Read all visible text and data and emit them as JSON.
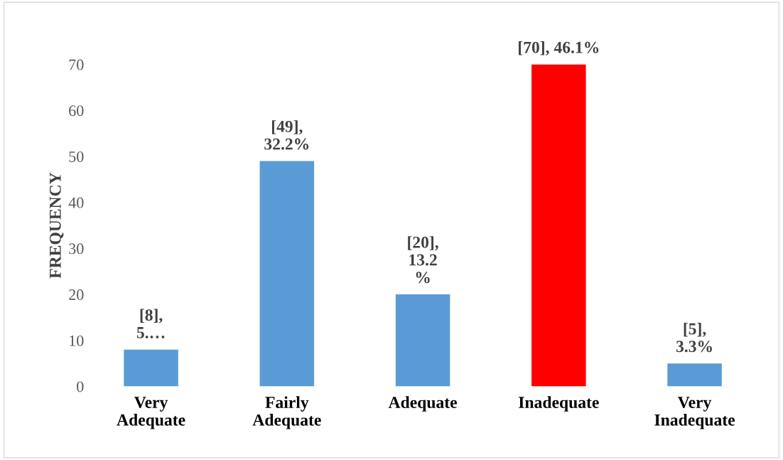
{
  "chart_data": {
    "type": "bar",
    "ylabel": "FREQUENCY",
    "categories": [
      "Very\nAdequate",
      "Fairly\nAdequate",
      "Adequate",
      "Inadequate",
      "Very\nInadequate"
    ],
    "values": [
      8,
      49,
      20,
      70,
      5
    ],
    "colors": [
      "#5b9bd5",
      "#5b9bd5",
      "#5b9bd5",
      "#ff0000",
      "#5b9bd5"
    ],
    "value_labels": [
      "[8],\n5.…",
      "[49],\n32.2%",
      "[20],\n13.2\n%",
      "[70], 46.1%",
      "[5],\n3.3%"
    ],
    "ylim": [
      0,
      70
    ],
    "yticks": [
      0,
      10,
      20,
      30,
      40,
      50,
      60,
      70
    ],
    "grid": false,
    "legend": false
  }
}
